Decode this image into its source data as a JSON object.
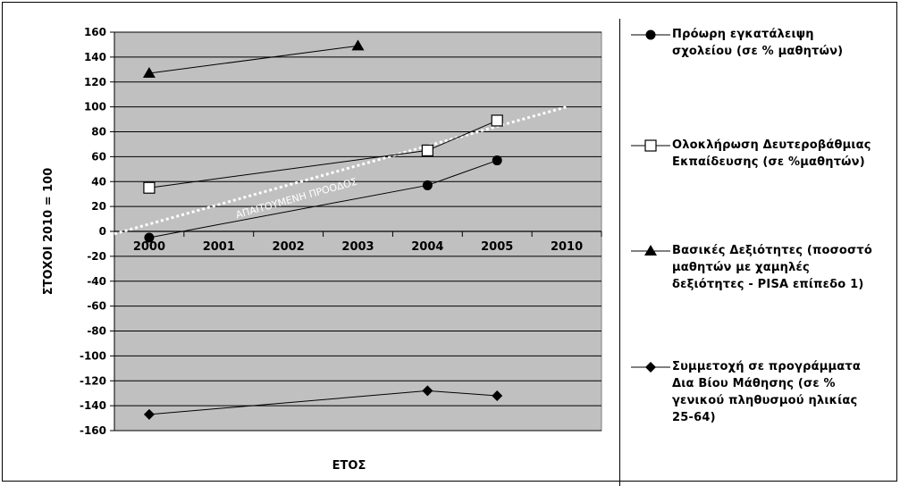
{
  "chart_data": {
    "type": "line",
    "ylabel": "ΣΤΟΧΟΙ 2010 = 100",
    "xlabel": "ΕΤΟΣ",
    "categories": [
      "2000",
      "2001",
      "2002",
      "2003",
      "2004",
      "2005",
      "2010"
    ],
    "ylim": [
      -160,
      160
    ],
    "yticks": [
      160,
      140,
      120,
      100,
      80,
      60,
      40,
      20,
      0,
      -20,
      -40,
      -60,
      -80,
      -100,
      -120,
      -140,
      -160
    ],
    "grid": true,
    "plot_background": "#c0c0c0",
    "legend_position": "right",
    "series": [
      {
        "name": "Πρόωρη εγκατάλειψη σχολείου (σε % μαθητών)",
        "marker": "circle",
        "x": [
          "2000",
          "2004",
          "2005"
        ],
        "values": [
          -5,
          37,
          57
        ]
      },
      {
        "name": "Ολοκλήρωση Δευτεροβάθμιας Εκπαίδευσης (σε %μαθητών)",
        "marker": "square",
        "x": [
          "2000",
          "2004",
          "2005"
        ],
        "values": [
          35,
          65,
          89
        ]
      },
      {
        "name": "Βασικές Δεξιότητες (ποσοστό μαθητών με χαμηλές δεξιότητες - PISA επίπεδο 1)",
        "marker": "triangle",
        "x": [
          "2000",
          "2003"
        ],
        "values": [
          127,
          149
        ]
      },
      {
        "name": "Συμμετοχή σε προγράμματα Δια Βίου Μάθησης (σε % γενικού πληθυσμού ηλικίας 25-64)",
        "marker": "diamond",
        "x": [
          "2000",
          "2004",
          "2005"
        ],
        "values": [
          -147,
          -128,
          -132
        ]
      }
    ],
    "reference_line": {
      "label": "ΑΠΑΙΤΟΥΜΕΝΗ ΠΡΟΟΔΟΣ",
      "x": [
        "2000",
        "2010"
      ],
      "values": [
        0,
        100
      ]
    },
    "colors": {
      "line": "#000000",
      "grid": "#000000",
      "reference": "#ffffff"
    }
  },
  "legend": [
    {
      "marker": "circle",
      "label": "Πρόωρη εγκατάλειψη\nσχολείου (σε % μαθητών)"
    },
    {
      "marker": "square",
      "label": "Ολοκλήρωση Δευτεροβάθμιας\nΕκπαίδευσης (σε %μαθητών)"
    },
    {
      "marker": "triangle",
      "label": "Βασικές Δεξιότητες (ποσοστό\nμαθητών με χαμηλές\nδεξιότητες - PISA επίπεδο 1)"
    },
    {
      "marker": "diamond",
      "label": "Συμμετοχή σε προγράμματα\nΔια Βίου Μάθησης (σε %\nγενικού πληθυσμού ηλικίας\n25-64)"
    }
  ]
}
